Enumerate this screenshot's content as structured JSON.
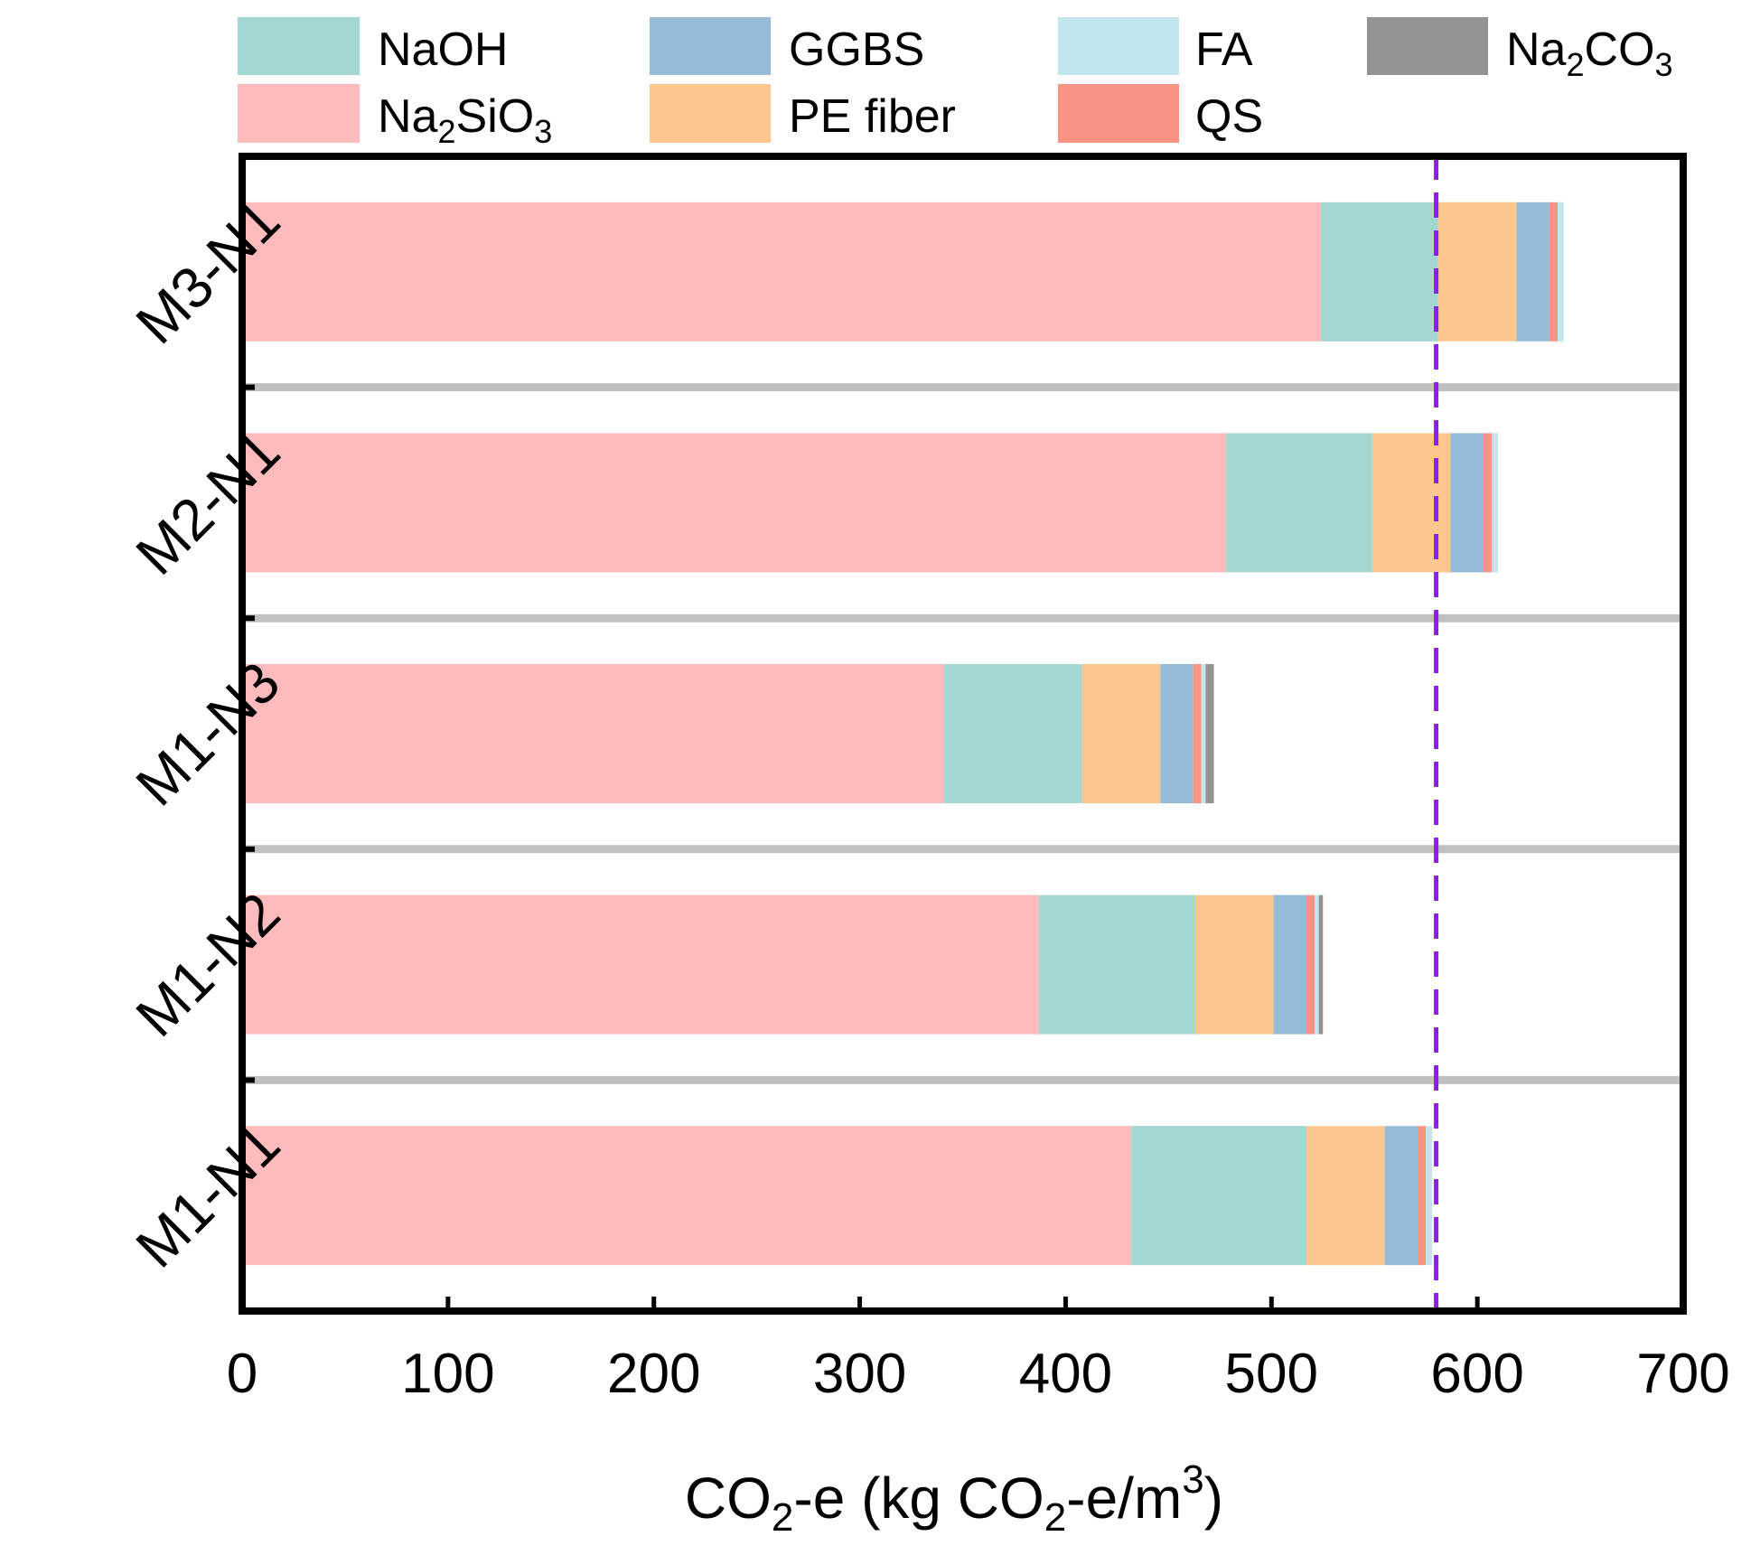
{
  "chart_data": {
    "type": "bar",
    "orientation": "horizontal",
    "stacked": true,
    "categories": [
      "M3-N1",
      "M2-N1",
      "M1-N3",
      "M1-N2",
      "M1-N1"
    ],
    "series": [
      {
        "key": "na2sio3",
        "name": "Na2SiO3",
        "color": "#FDBBBD",
        "values": [
          524,
          478,
          341,
          387,
          432
        ]
      },
      {
        "key": "naoh",
        "name": "NaOH",
        "color": "#A3D7D2",
        "values": [
          57,
          71,
          67,
          76,
          85
        ]
      },
      {
        "key": "pe",
        "name": "PE fiber",
        "color": "#FCC78E",
        "values": [
          38,
          38,
          38,
          38,
          38
        ]
      },
      {
        "key": "ggbs",
        "name": "GGBS",
        "color": "#95BBD8",
        "values": [
          16,
          16,
          16,
          16,
          16
        ]
      },
      {
        "key": "qs",
        "name": "QS",
        "color": "#F99484",
        "values": [
          4,
          4,
          4,
          4,
          4
        ]
      },
      {
        "key": "fa",
        "name": "FA",
        "color": "#C1E6EE",
        "values": [
          3,
          3,
          2,
          2,
          3
        ]
      },
      {
        "key": "na2co3",
        "name": "Na2CO3",
        "color": "#939393",
        "values": [
          0,
          0,
          4,
          2,
          0
        ]
      }
    ],
    "legend_order": [
      "naoh",
      "ggbs",
      "fa",
      "na2co3",
      "na2sio3",
      "pe",
      "qs"
    ],
    "legend_placement": "top",
    "reference_line": {
      "x": 580,
      "color": "#8B1EF0",
      "style": "dashed"
    },
    "separator_color": "#C0C0C0",
    "xlim": [
      0,
      700
    ],
    "xticks": [
      0,
      100,
      200,
      300,
      400,
      500,
      600,
      700
    ],
    "grid": false
  },
  "labels": {
    "naoh": "NaOH",
    "ggbs": "GGBS",
    "fa": "FA",
    "na2co3": {
      "base": "Na",
      "sub1": "2",
      "mid": "CO",
      "sub2": "3"
    },
    "na2sio3": {
      "base": "Na",
      "sub1": "2",
      "mid": "SiO",
      "sub2": "3"
    },
    "pe": "PE fiber",
    "qs": "QS"
  },
  "xaxis_title": {
    "part1": "CO",
    "sub1": "2",
    "part2": "-e (kg CO",
    "sub2": "2",
    "part3": "-e/m",
    "sup": "3",
    "part4": ")"
  }
}
